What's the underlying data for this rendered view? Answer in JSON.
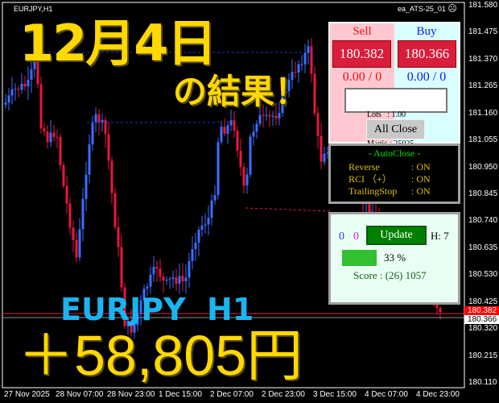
{
  "window": {
    "symbol_label": "EURJPY,H1",
    "ea_name": "ea_ATS-25_01",
    "ea_icon": "sad-face-icon"
  },
  "price_axis": [
    "181.580",
    "181.475",
    "181.370",
    "181.265",
    "181.160",
    "181.055",
    "180.950",
    "180.845",
    "180.740",
    "180.635",
    "180.530",
    "180.425",
    "180.320",
    "180.215",
    "180.110"
  ],
  "price_tags": {
    "bid": "180.382",
    "ask": "180.366"
  },
  "time_axis": [
    "27 Nov 2025",
    "28 Nov 07:00",
    "28 Nov 23:00",
    "1 Dec 15:00",
    "2 Dec 07:00",
    "2 Dec 23:00",
    "3 Dec 15:00",
    "4 Dec 07:00",
    "4 Dec 23:00"
  ],
  "overlay": {
    "date_title": "12月4日",
    "subtitle": "の結果！",
    "pair": "EURJPY  H1",
    "profit": "＋58,805円"
  },
  "trade_panel": {
    "sell_label": "Sell",
    "buy_label": "Buy",
    "sell_price": "180.382",
    "buy_price": "180.366",
    "sell_pos": "0.00 / 0",
    "buy_pos": "0.00 / 0",
    "lots": "Lots   : 1.00",
    "magic": "Magic : 25025",
    "all_close": "All Close"
  },
  "autoclose_panel": {
    "title": "- AutoClose -",
    "rows": [
      {
        "label": "Reverse",
        "value": ": ON"
      },
      {
        "label": "RCI （+）",
        "value": ": ON"
      },
      {
        "label": "TrailingStop",
        "value": ": ON"
      }
    ]
  },
  "score_panel": {
    "count_blue": "0",
    "count_magenta": "0",
    "update": "Update",
    "hours": "H: 7",
    "progress_percent": 33,
    "progress_label": "33 %",
    "score": "Score : (26) 1057"
  },
  "colors": {
    "bull": "#3c6eff",
    "bear": "#e8173c",
    "text_yellow": "#ffd800",
    "pair_cyan": "#1ab4f0",
    "sell_bg": "#ffc8d0",
    "buy_bg": "#d8ffff",
    "price_box": "#d81e3c"
  }
}
